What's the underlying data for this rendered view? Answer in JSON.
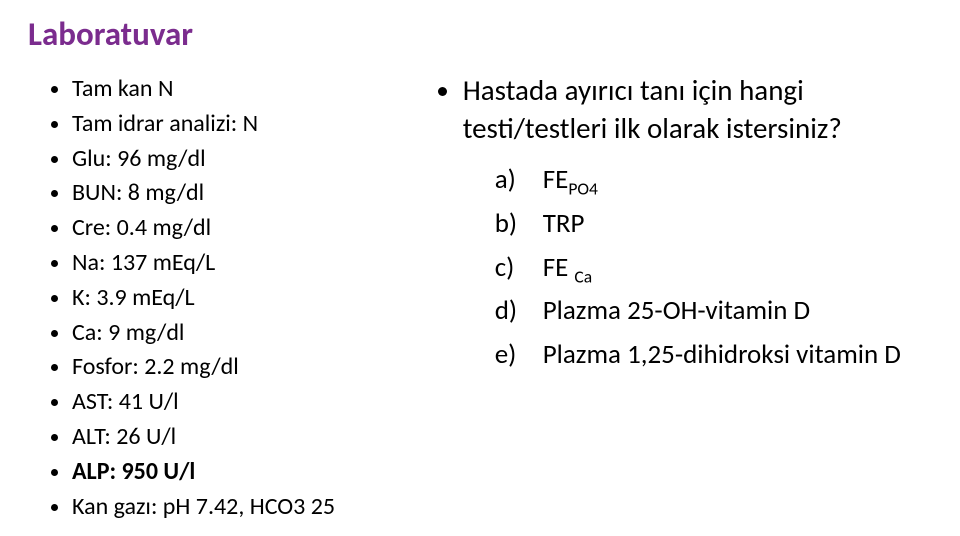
{
  "title": "Laboratuvar",
  "title_color": "#7b2c8e",
  "left_list": [
    {
      "text": "Tam kan N",
      "bold": false
    },
    {
      "text": "Tam idrar analizi: N",
      "bold": false
    },
    {
      "text": "Glu: 96 mg/dl",
      "bold": false
    },
    {
      "text": "BUN: 8 mg/dl",
      "bold": false
    },
    {
      "text": "Cre: 0.4 mg/dl",
      "bold": false
    },
    {
      "text": "Na: 137 mEq/L",
      "bold": false
    },
    {
      "text": "K: 3.9 mEq/L",
      "bold": false
    },
    {
      "text": "Ca: 9 mg/dl",
      "bold": false
    },
    {
      "text": "Fosfor: 2.2 mg/dl",
      "bold": false
    },
    {
      "text": "AST: 41 U/l",
      "bold": false
    },
    {
      "text": "ALT: 26 U/l",
      "bold": false
    },
    {
      "text": "ALP: 950 U/l",
      "bold": true
    },
    {
      "text": "Kan gazı: pH 7.42, HCO3 25",
      "bold": false
    }
  ],
  "question": "Hastada ayırıcı tanı için hangi testi/testleri ilk olarak istersiniz?",
  "options": [
    {
      "marker": "a)",
      "main": "FE",
      "sub": "PO4"
    },
    {
      "marker": "b)",
      "main": "TRP",
      "sub": ""
    },
    {
      "marker": "c)",
      "main": "FE ",
      "sub": "Ca"
    },
    {
      "marker": "d)",
      "main": "Plazma 25-OH-vitamin D",
      "sub": ""
    },
    {
      "marker": "e)",
      "main": "Plazma 1,25-dihidroksi vitamin D",
      "sub": ""
    }
  ],
  "body_font_size_left": 24,
  "body_font_size_question": 29,
  "body_font_size_options": 27,
  "background_color": "#ffffff",
  "text_color": "#000000"
}
